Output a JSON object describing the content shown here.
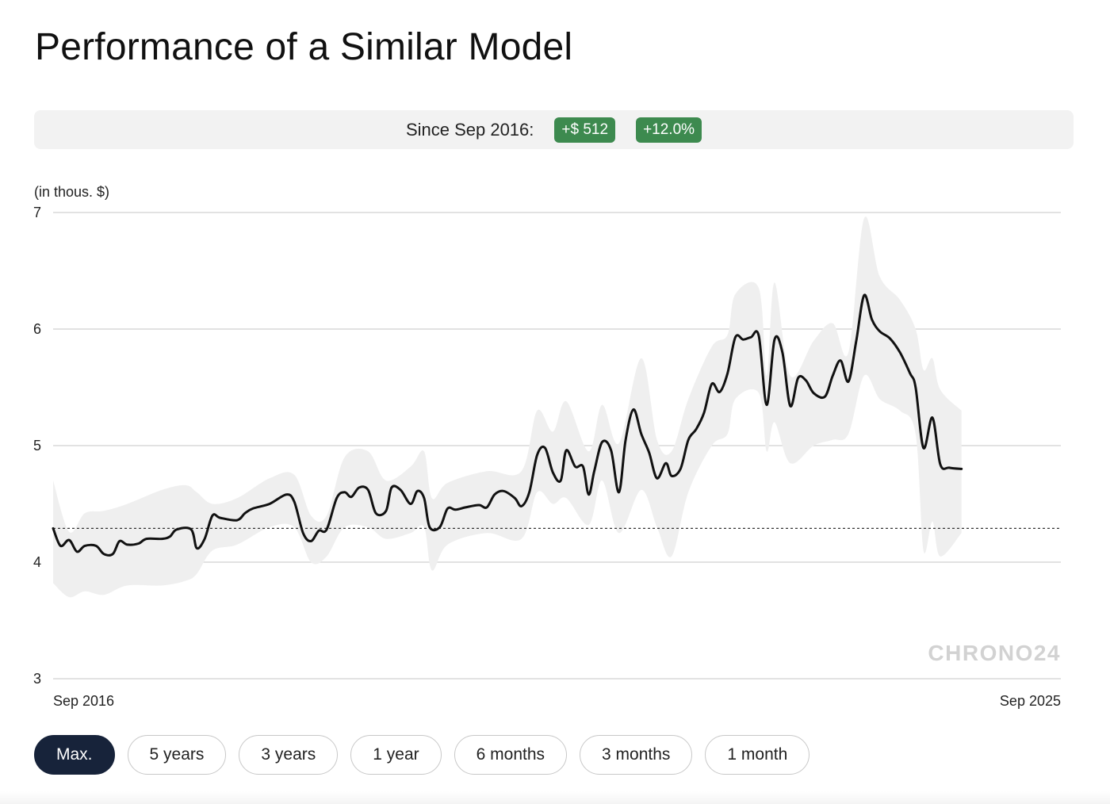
{
  "page": {
    "title": "Performance of a Similar Model"
  },
  "summary": {
    "label": "Since Sep 2016:",
    "change_abs": "+$ 512",
    "change_pct": "+12.0%",
    "badge_color": "#3d8a4f"
  },
  "watermark": "CHRONO24",
  "range_buttons": [
    "Max.",
    "5 years",
    "3 years",
    "1 year",
    "6 months",
    "3 months",
    "1 month"
  ],
  "active_range": "Max.",
  "chart_data": {
    "type": "line",
    "ylabel": "(in thous. $)",
    "ylim": [
      3,
      7
    ],
    "yticks": [
      3,
      4,
      5,
      6,
      7
    ],
    "xlim": [
      2016.667,
      2025.667
    ],
    "x_tick_labels": [
      {
        "x": 2016.667,
        "label": "Sep 2016"
      },
      {
        "x": 2025.667,
        "label": "Sep 2025"
      }
    ],
    "baseline": 4.29,
    "grid": true,
    "line_color": "#111111",
    "band_color": "#efefef",
    "series": [
      {
        "points": [
          [
            2016.667,
            4.29
          ],
          [
            2016.733,
            4.14
          ],
          [
            2016.81,
            4.19
          ],
          [
            2016.88,
            4.09
          ],
          [
            2016.95,
            4.14
          ],
          [
            2017.05,
            4.14
          ],
          [
            2017.12,
            4.07
          ],
          [
            2017.2,
            4.07
          ],
          [
            2017.26,
            4.18
          ],
          [
            2017.33,
            4.15
          ],
          [
            2017.43,
            4.16
          ],
          [
            2017.5,
            4.2
          ],
          [
            2017.64,
            4.2
          ],
          [
            2017.71,
            4.22
          ],
          [
            2017.77,
            4.28
          ],
          [
            2017.9,
            4.28
          ],
          [
            2017.95,
            4.12
          ],
          [
            2018.02,
            4.2
          ],
          [
            2018.09,
            4.4
          ],
          [
            2018.16,
            4.38
          ],
          [
            2018.31,
            4.36
          ],
          [
            2018.38,
            4.42
          ],
          [
            2018.45,
            4.46
          ],
          [
            2018.6,
            4.5
          ],
          [
            2018.75,
            4.58
          ],
          [
            2018.82,
            4.52
          ],
          [
            2018.9,
            4.25
          ],
          [
            2018.97,
            4.18
          ],
          [
            2019.04,
            4.27
          ],
          [
            2019.11,
            4.28
          ],
          [
            2019.2,
            4.55
          ],
          [
            2019.27,
            4.6
          ],
          [
            2019.33,
            4.56
          ],
          [
            2019.4,
            4.64
          ],
          [
            2019.48,
            4.62
          ],
          [
            2019.55,
            4.42
          ],
          [
            2019.64,
            4.44
          ],
          [
            2019.69,
            4.64
          ],
          [
            2019.77,
            4.62
          ],
          [
            2019.86,
            4.5
          ],
          [
            2019.92,
            4.61
          ],
          [
            2019.98,
            4.55
          ],
          [
            2020.03,
            4.3
          ],
          [
            2020.12,
            4.3
          ],
          [
            2020.19,
            4.46
          ],
          [
            2020.26,
            4.45
          ],
          [
            2020.35,
            4.47
          ],
          [
            2020.47,
            4.49
          ],
          [
            2020.54,
            4.47
          ],
          [
            2020.61,
            4.58
          ],
          [
            2020.69,
            4.61
          ],
          [
            2020.79,
            4.55
          ],
          [
            2020.85,
            4.48
          ],
          [
            2020.92,
            4.6
          ],
          [
            2020.99,
            4.92
          ],
          [
            2021.06,
            4.98
          ],
          [
            2021.13,
            4.77
          ],
          [
            2021.2,
            4.7
          ],
          [
            2021.25,
            4.96
          ],
          [
            2021.33,
            4.82
          ],
          [
            2021.4,
            4.82
          ],
          [
            2021.45,
            4.58
          ],
          [
            2021.5,
            4.78
          ],
          [
            2021.57,
            5.03
          ],
          [
            2021.65,
            4.96
          ],
          [
            2021.72,
            4.6
          ],
          [
            2021.78,
            5.05
          ],
          [
            2021.85,
            5.31
          ],
          [
            2021.92,
            5.1
          ],
          [
            2021.99,
            4.94
          ],
          [
            2022.06,
            4.72
          ],
          [
            2022.14,
            4.85
          ],
          [
            2022.19,
            4.74
          ],
          [
            2022.27,
            4.8
          ],
          [
            2022.34,
            5.05
          ],
          [
            2022.41,
            5.14
          ],
          [
            2022.48,
            5.28
          ],
          [
            2022.55,
            5.53
          ],
          [
            2022.62,
            5.46
          ],
          [
            2022.69,
            5.62
          ],
          [
            2022.76,
            5.93
          ],
          [
            2022.83,
            5.91
          ],
          [
            2022.9,
            5.93
          ],
          [
            2022.97,
            5.94
          ],
          [
            2023.04,
            5.35
          ],
          [
            2023.11,
            5.91
          ],
          [
            2023.18,
            5.8
          ],
          [
            2023.25,
            5.34
          ],
          [
            2023.32,
            5.58
          ],
          [
            2023.39,
            5.56
          ],
          [
            2023.46,
            5.45
          ],
          [
            2023.56,
            5.42
          ],
          [
            2023.63,
            5.6
          ],
          [
            2023.7,
            5.73
          ],
          [
            2023.77,
            5.55
          ],
          [
            2023.84,
            5.9
          ],
          [
            2023.91,
            6.29
          ],
          [
            2023.98,
            6.08
          ],
          [
            2024.05,
            5.98
          ],
          [
            2024.14,
            5.92
          ],
          [
            2024.23,
            5.8
          ],
          [
            2024.32,
            5.62
          ],
          [
            2024.37,
            5.5
          ],
          [
            2024.44,
            4.98
          ],
          [
            2024.52,
            5.24
          ],
          [
            2024.59,
            4.84
          ],
          [
            2024.67,
            4.81
          ],
          [
            2024.78,
            4.8
          ]
        ]
      }
    ],
    "band": [
      [
        2016.667,
        4.7,
        3.82
      ],
      [
        2016.81,
        4.26,
        3.7
      ],
      [
        2016.95,
        4.42,
        3.75
      ],
      [
        2017.12,
        4.44,
        3.72
      ],
      [
        2017.33,
        4.5,
        3.8
      ],
      [
        2017.64,
        4.62,
        3.8
      ],
      [
        2017.85,
        4.66,
        3.84
      ],
      [
        2017.95,
        4.6,
        3.9
      ],
      [
        2018.09,
        4.5,
        4.1
      ],
      [
        2018.31,
        4.55,
        4.15
      ],
      [
        2018.6,
        4.72,
        4.3
      ],
      [
        2018.82,
        4.75,
        4.3
      ],
      [
        2018.97,
        4.4,
        4.0
      ],
      [
        2019.11,
        4.4,
        4.05
      ],
      [
        2019.27,
        4.9,
        4.3
      ],
      [
        2019.48,
        4.95,
        4.3
      ],
      [
        2019.64,
        4.7,
        4.2
      ],
      [
        2019.86,
        4.82,
        4.25
      ],
      [
        2019.98,
        4.95,
        4.3
      ],
      [
        2020.05,
        4.55,
        3.93
      ],
      [
        2020.19,
        4.68,
        4.15
      ],
      [
        2020.54,
        4.78,
        4.25
      ],
      [
        2020.85,
        4.78,
        4.2
      ],
      [
        2020.99,
        5.3,
        4.6
      ],
      [
        2021.13,
        5.12,
        4.5
      ],
      [
        2021.25,
        5.38,
        4.55
      ],
      [
        2021.45,
        4.95,
        4.32
      ],
      [
        2021.57,
        5.35,
        4.7
      ],
      [
        2021.72,
        5.02,
        4.25
      ],
      [
        2021.92,
        5.75,
        4.62
      ],
      [
        2022.06,
        5.05,
        4.3
      ],
      [
        2022.19,
        4.95,
        4.05
      ],
      [
        2022.34,
        5.4,
        4.6
      ],
      [
        2022.55,
        5.85,
        5.0
      ],
      [
        2022.69,
        5.95,
        5.1
      ],
      [
        2022.76,
        6.3,
        5.4
      ],
      [
        2022.97,
        6.35,
        5.45
      ],
      [
        2023.04,
        5.6,
        4.95
      ],
      [
        2023.11,
        6.4,
        5.2
      ],
      [
        2023.25,
        5.6,
        4.85
      ],
      [
        2023.46,
        5.9,
        5.0
      ],
      [
        2023.63,
        6.05,
        5.05
      ],
      [
        2023.77,
        5.8,
        5.1
      ],
      [
        2023.91,
        6.95,
        5.6
      ],
      [
        2024.05,
        6.45,
        5.4
      ],
      [
        2024.23,
        6.25,
        5.3
      ],
      [
        2024.37,
        6.0,
        5.1
      ],
      [
        2024.44,
        5.65,
        4.1
      ],
      [
        2024.52,
        5.75,
        4.35
      ],
      [
        2024.59,
        5.48,
        4.05
      ],
      [
        2024.78,
        5.3,
        4.25
      ]
    ]
  }
}
